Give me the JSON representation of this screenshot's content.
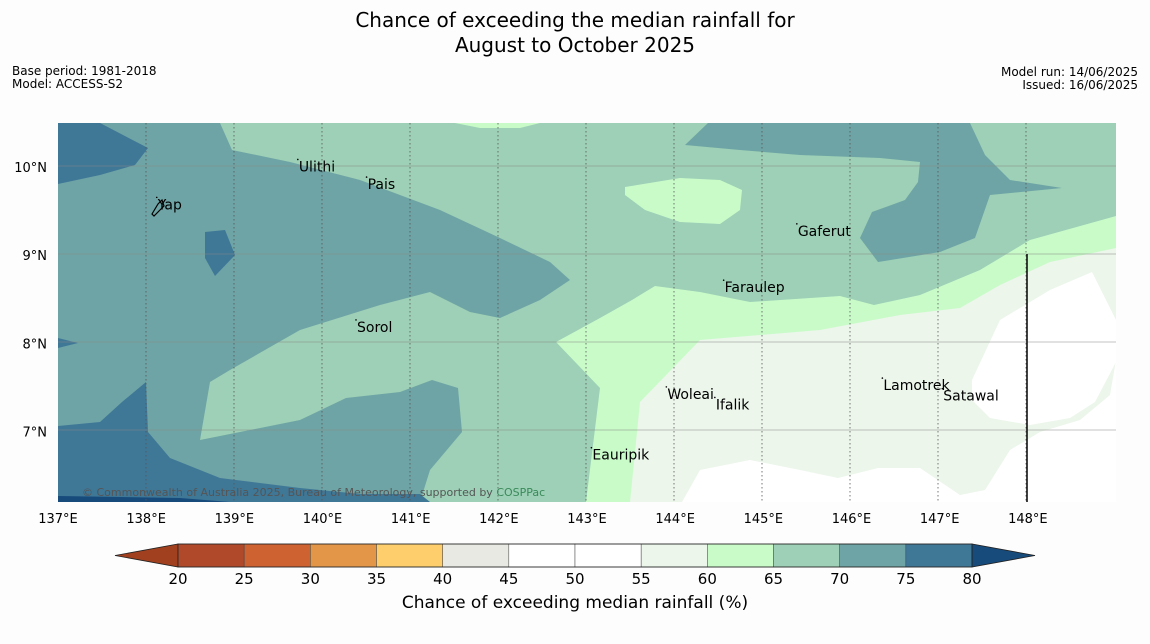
{
  "title_line1": "Chance of exceeding the median rainfall for",
  "title_line2": "August to October 2025",
  "meta_left": {
    "base_period": "Base period: 1981-2018",
    "model": "Model: ACCESS-S2"
  },
  "meta_right": {
    "model_run": "Model run: 14/06/2025",
    "issued": "Issued: 16/06/2025"
  },
  "copyright": "© Commonwealth of Australia 2025, Bureau of Meteorology, supported by",
  "copyright_link": "COSPPac",
  "map_extent": {
    "lon_min": 137.0,
    "lon_max": 149.0,
    "lat_min": 6.2,
    "lat_max": 10.5
  },
  "lon_ticks": [
    "137°E",
    "138°E",
    "139°E",
    "140°E",
    "141°E",
    "142°E",
    "143°E",
    "144°E",
    "145°E",
    "146°E",
    "147°E",
    "148°E"
  ],
  "lat_ticks": [
    "10°N",
    "9°N",
    "8°N",
    "7°N"
  ],
  "places": [
    {
      "name": "Ulithi",
      "lon": 139.72,
      "lat": 9.95
    },
    {
      "name": "Pais",
      "lon": 140.5,
      "lat": 9.75
    },
    {
      "name": "Yap",
      "lon": 138.12,
      "lat": 9.52
    },
    {
      "name": "Gaferut",
      "lon": 145.38,
      "lat": 9.22
    },
    {
      "name": "Faraulep",
      "lon": 144.55,
      "lat": 8.58
    },
    {
      "name": "Sorol",
      "lon": 140.38,
      "lat": 8.13
    },
    {
      "name": "Woleai",
      "lon": 143.9,
      "lat": 7.37
    },
    {
      "name": "Ifalik",
      "lon": 144.45,
      "lat": 7.25
    },
    {
      "name": "Lamotrek",
      "lon": 146.35,
      "lat": 7.47
    },
    {
      "name": "Satawal",
      "lon": 147.03,
      "lat": 7.35
    },
    {
      "name": "Eauripik",
      "lon": 143.05,
      "lat": 6.68
    }
  ],
  "colorbar": {
    "ticks": [
      "20",
      "25",
      "30",
      "35",
      "40",
      "45",
      "50",
      "55",
      "60",
      "65",
      "70",
      "75",
      "80"
    ],
    "colors": [
      "#b0482a",
      "#cf6231",
      "#e39647",
      "#fecd6c",
      "#e9e9e4",
      "#ffffff",
      "#ffffff",
      "#ecf6eb",
      "#c9fbc9",
      "#9dd0b6",
      "#6ea4a5",
      "#3f7797"
    ],
    "under_color": "#a0401f",
    "over_color": "#174b7c",
    "label": "Chance of exceeding median rainfall (%)"
  }
}
